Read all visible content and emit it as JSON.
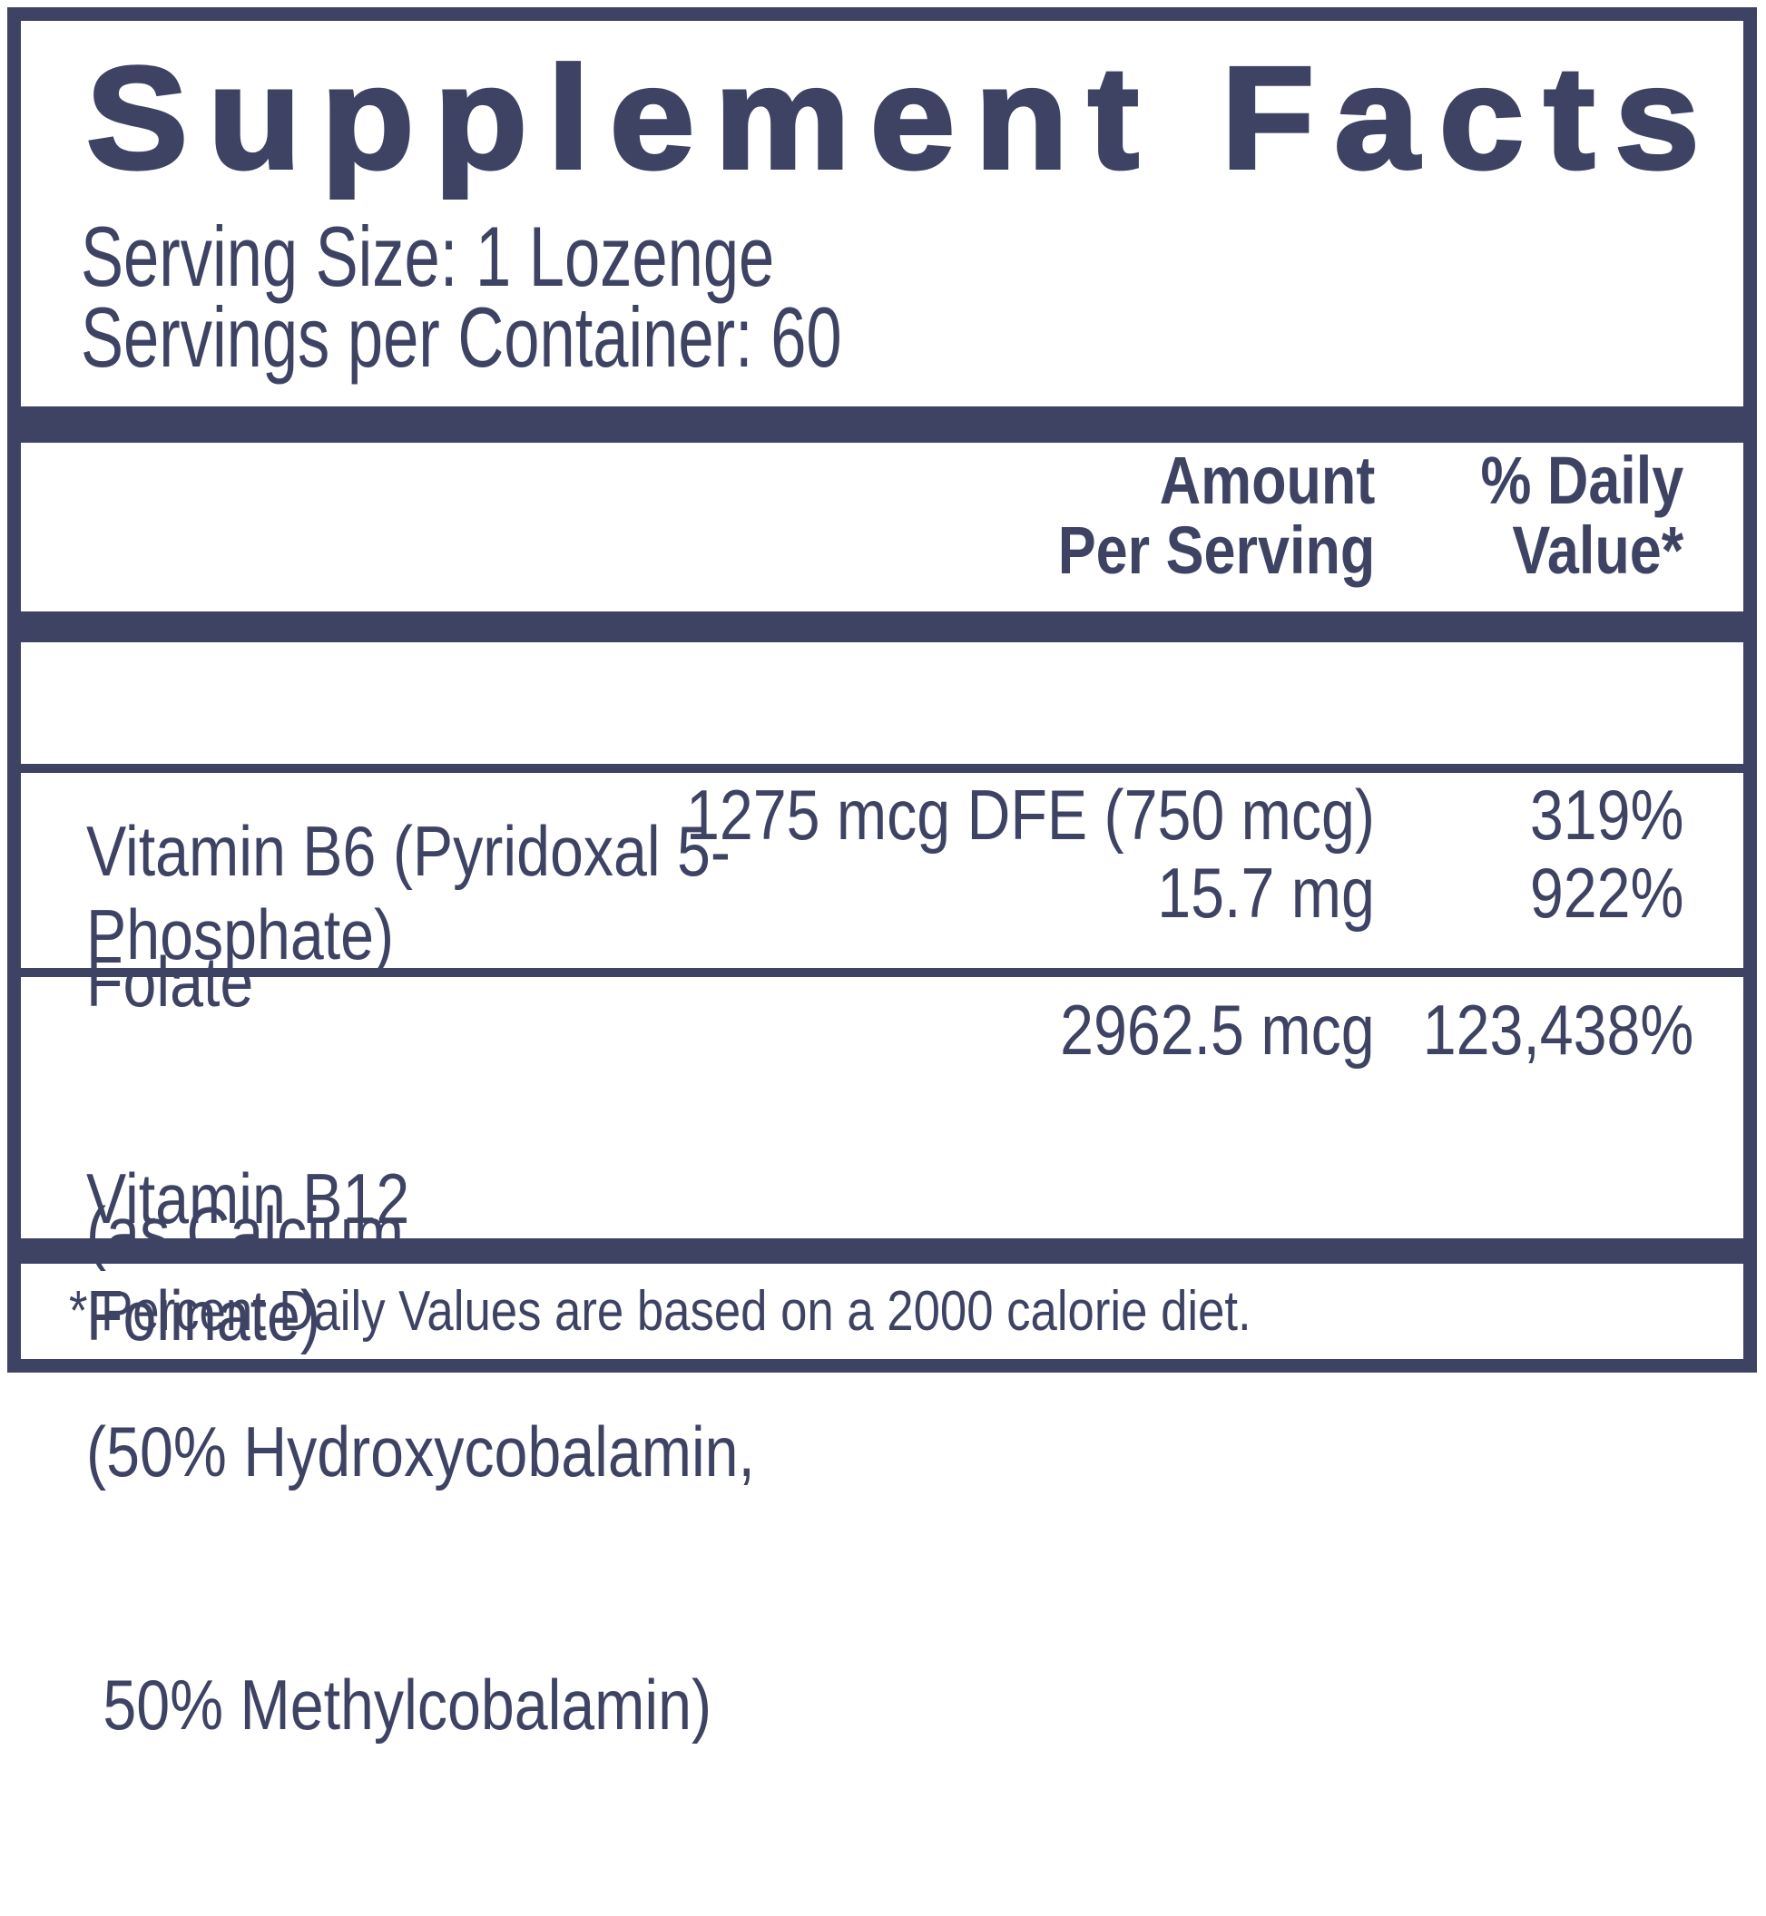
{
  "title": "Supplement Facts",
  "serving_info": {
    "serving_size": "Serving Size: 1 Lozenge",
    "servings_per_container": "Servings per Container: 60"
  },
  "columns": {
    "amount_line1": "Amount",
    "amount_line2": "Per Serving",
    "dv_line1": "% Daily",
    "dv_line2": "Value*"
  },
  "rows": [
    {
      "name_lines": [
        "Vitamin B6 (Pyridoxal 5-Phosphate)"
      ],
      "amount": "15.7 mg",
      "daily_value": "922%"
    },
    {
      "name_lines": [
        "Folate",
        "(as Calcium Folinate)"
      ],
      "amount": "1275 mcg DFE (750 mcg)",
      "daily_value": "319%"
    },
    {
      "name_lines": [
        "Vitamin B12",
        "(50% Hydroxycobalamin,",
        " 50% Methylcobalamin)"
      ],
      "amount": "2962.5 mcg",
      "daily_value": "123,438%"
    }
  ],
  "footnote": "* Percent Daily Values are based on a 2000 calorie diet.",
  "colors": {
    "ink": "#3e4364",
    "background": "#ffffff"
  }
}
